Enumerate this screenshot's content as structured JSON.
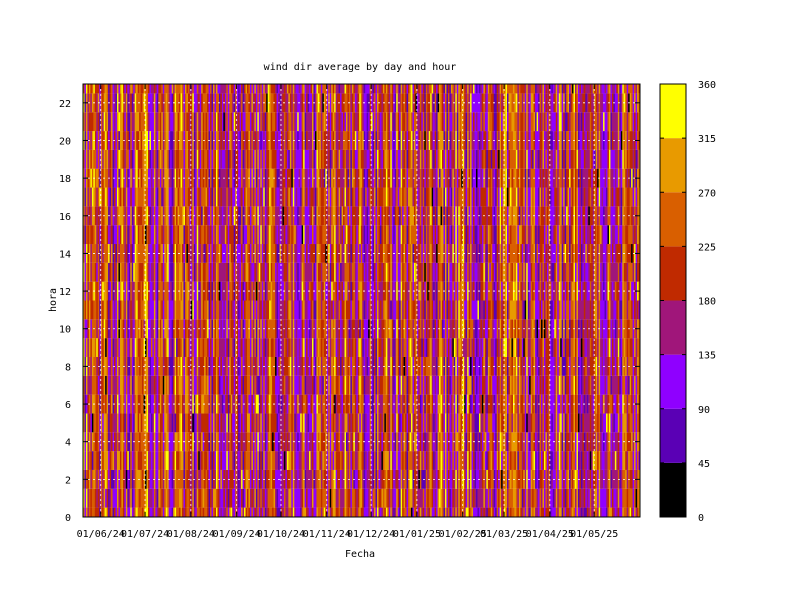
{
  "chart_data": {
    "type": "heatmap",
    "title": "wind dir average by day and hour",
    "xlabel": "Fecha",
    "ylabel": "hora",
    "x_ticks": [
      "01/06/24",
      "01/07/24",
      "01/08/24",
      "01/09/24",
      "01/10/24",
      "01/11/24",
      "01/12/24",
      "01/01/25",
      "01/02/25",
      "01/03/25",
      "01/04/25",
      "01/05/25"
    ],
    "y_ticks": [
      0,
      2,
      4,
      6,
      8,
      10,
      12,
      14,
      16,
      18,
      20,
      22
    ],
    "ylim": [
      0,
      23
    ],
    "date_range": [
      "2024-05-20",
      "2025-05-31"
    ],
    "colorbar": {
      "min": 0,
      "max": 360,
      "ticks": [
        0,
        45,
        90,
        135,
        180,
        225,
        270,
        315,
        360
      ],
      "bands": [
        {
          "from": 0,
          "to": 45,
          "color": "#000000"
        },
        {
          "from": 45,
          "to": 90,
          "color": "#5a00b5"
        },
        {
          "from": 90,
          "to": 135,
          "color": "#8f00ff"
        },
        {
          "from": 135,
          "to": 180,
          "color": "#a0167a"
        },
        {
          "from": 180,
          "to": 225,
          "color": "#c02a00"
        },
        {
          "from": 225,
          "to": 270,
          "color": "#d95f00"
        },
        {
          "from": 270,
          "to": 315,
          "color": "#e89a00"
        },
        {
          "from": 315,
          "to": 360,
          "color": "#ffff00"
        }
      ]
    },
    "grid": true,
    "grid_style": "dashed white"
  }
}
